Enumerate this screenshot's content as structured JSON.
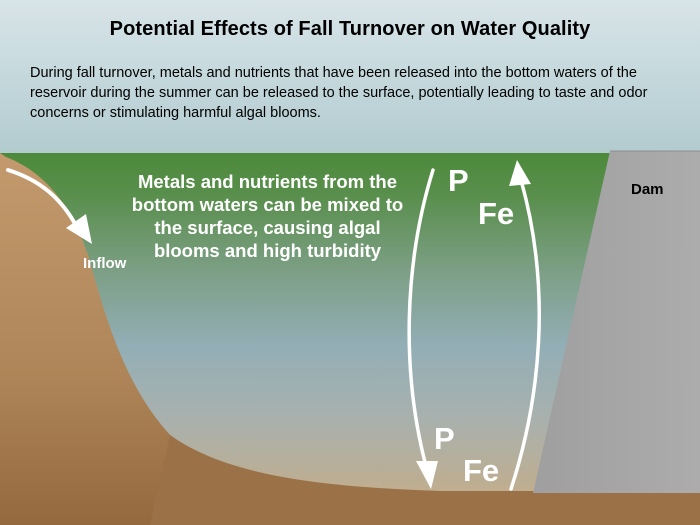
{
  "title": "Potential Effects of Fall Turnover on Water Quality",
  "description": "During fall turnover, metals and nutrients that have been released into the bottom waters of the reservoir during the summer can be released to the surface, potentially leading to taste and odor concerns or stimulating harmful algal blooms.",
  "callout": "Metals and nutrients from the bottom waters can be mixed to the surface, causing algal blooms and high turbidity",
  "labels": {
    "inflow": "Inflow",
    "dam": "Dam",
    "p_top": "P",
    "fe_top": "Fe",
    "p_bottom": "P",
    "fe_bottom": "Fe"
  },
  "colors": {
    "water_surface": "#4f8a3c",
    "water_mid": "#8aa7b0",
    "water_bottom": "#c9ad85",
    "ground": "#b58e62",
    "dam": "#a6a6a6",
    "text_light": "#ffffff"
  }
}
